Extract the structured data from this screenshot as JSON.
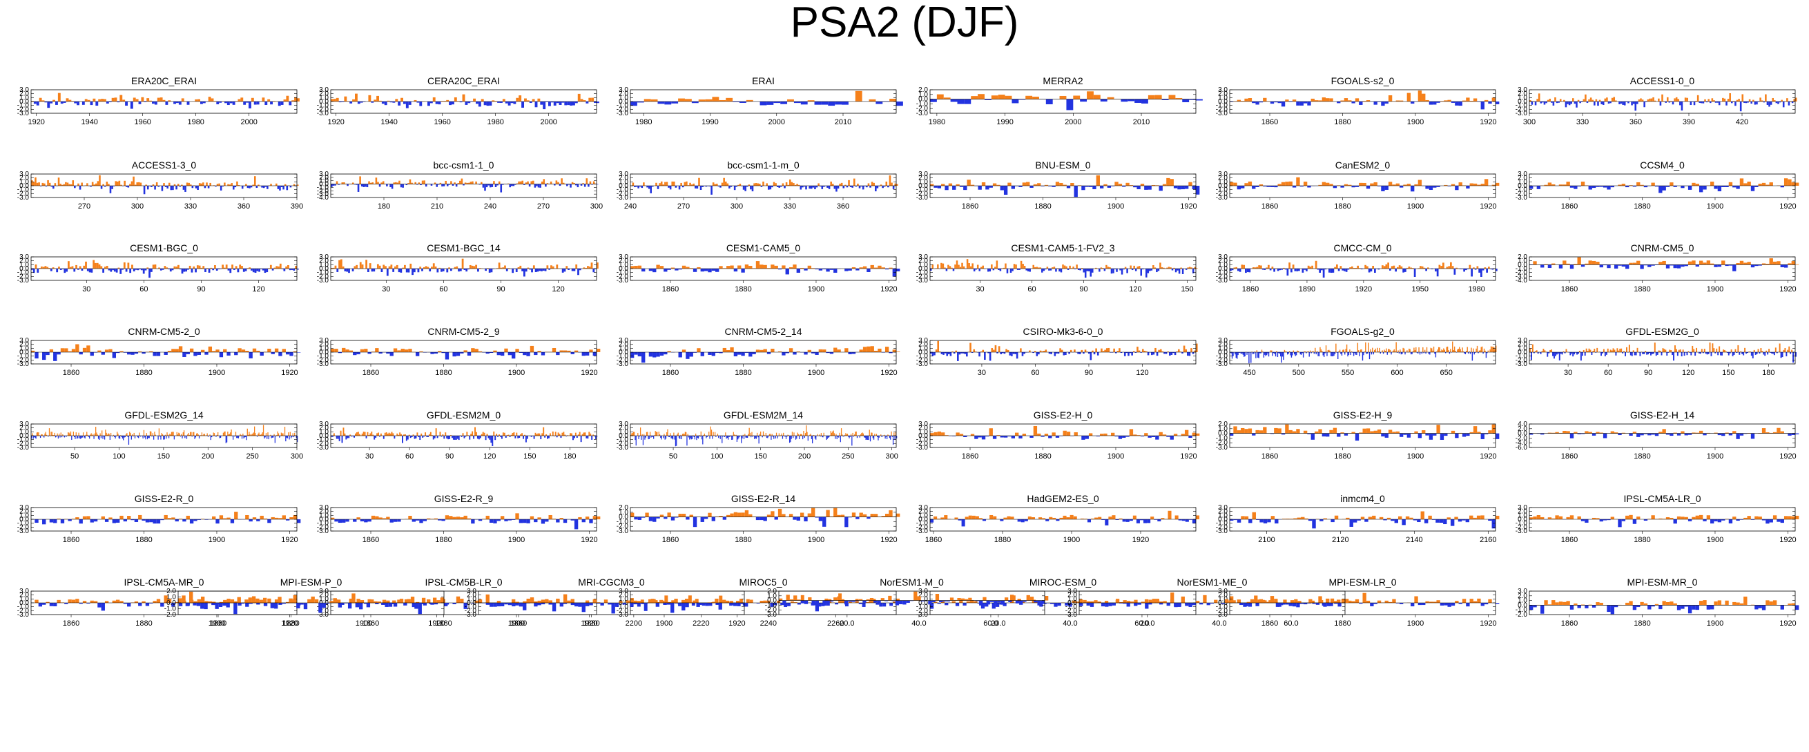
{
  "title": "PSA2 (DJF)",
  "colors": {
    "positive": "#f5801a",
    "negative": "#2233e0",
    "axis": "#000000"
  },
  "chart_data": [
    {
      "type": "area",
      "title": "ERA20C_ERAI",
      "xlim": [
        1918,
        2018
      ],
      "xticks": [
        1920,
        1940,
        1960,
        1980,
        2000
      ],
      "ylim": [
        -3,
        3
      ],
      "yticks": [
        3,
        2,
        1,
        0,
        -1,
        -2,
        -3
      ],
      "seed": 1,
      "regime": "mixed"
    },
    {
      "type": "area",
      "title": "CERA20C_ERAI",
      "xlim": [
        1918,
        2018
      ],
      "xticks": [
        1920,
        1940,
        1960,
        1980,
        2000
      ],
      "ylim": [
        -3,
        3
      ],
      "yticks": [
        3,
        2,
        1,
        0,
        -1,
        -2,
        -3
      ],
      "seed": 2,
      "regime": "mixed"
    },
    {
      "type": "area",
      "title": "ERAI",
      "xlim": [
        1978,
        2018
      ],
      "xticks": [
        1980,
        1990,
        2000,
        2010
      ],
      "ylim": [
        -3,
        3
      ],
      "yticks": [
        3,
        2,
        1,
        0,
        -1,
        -2,
        -3
      ],
      "seed": 3,
      "regime": "mixed"
    },
    {
      "type": "area",
      "title": "MERRA2",
      "xlim": [
        1979,
        2018
      ],
      "xticks": [
        1980,
        1990,
        2000,
        2010
      ],
      "ylim": [
        -3,
        2
      ],
      "yticks": [
        2,
        1,
        0,
        -1,
        -2,
        -3
      ],
      "seed": 4,
      "regime": "mixed"
    },
    {
      "type": "area",
      "title": "FGOALS-s2_0",
      "xlim": [
        1849,
        1922
      ],
      "xticks": [
        1860,
        1880,
        1900,
        1920
      ],
      "ylim": [
        -3,
        3
      ],
      "yticks": [
        3,
        2,
        1,
        0,
        -1,
        -2,
        -3
      ],
      "seed": 5,
      "regime": "mixed"
    },
    {
      "type": "area",
      "title": "ACCESS1-0_0",
      "xlim": [
        300,
        450
      ],
      "xticks": [
        300,
        330,
        360,
        390,
        420
      ],
      "ylim": [
        -3,
        3
      ],
      "yticks": [
        3,
        2,
        1,
        0,
        -1,
        -2,
        -3
      ],
      "seed": 6,
      "regime": "mixed"
    },
    {
      "type": "area",
      "title": "ACCESS1-3_0",
      "xlim": [
        240,
        390
      ],
      "xticks": [
        270,
        300,
        330,
        360,
        390
      ],
      "ylim": [
        -3,
        3
      ],
      "yticks": [
        3,
        2,
        1,
        0,
        -1,
        -2,
        -3
      ],
      "seed": 7,
      "regime": "posneg"
    },
    {
      "type": "area",
      "title": "bcc-csm1-1_0",
      "xlim": [
        150,
        300
      ],
      "xticks": [
        180,
        210,
        240,
        270,
        300
      ],
      "ylim": [
        -4,
        3
      ],
      "yticks": [
        3,
        2,
        1,
        0,
        -1,
        -2,
        -3,
        -4
      ],
      "seed": 8,
      "regime": "mixed"
    },
    {
      "type": "area",
      "title": "bcc-csm1-1-m_0",
      "xlim": [
        240,
        390
      ],
      "xticks": [
        240,
        270,
        300,
        330,
        360
      ],
      "ylim": [
        -3,
        3
      ],
      "yticks": [
        3,
        2,
        1,
        0,
        -1,
        -2,
        -3
      ],
      "seed": 9,
      "regime": "mixed"
    },
    {
      "type": "area",
      "title": "BNU-ESM_0",
      "xlim": [
        1849,
        1922
      ],
      "xticks": [
        1860,
        1880,
        1900,
        1920
      ],
      "ylim": [
        -3,
        3
      ],
      "yticks": [
        3,
        2,
        1,
        0,
        -1,
        -2,
        -3
      ],
      "seed": 10,
      "regime": "mixed"
    },
    {
      "type": "area",
      "title": "CanESM2_0",
      "xlim": [
        1849,
        1922
      ],
      "xticks": [
        1860,
        1880,
        1900,
        1920
      ],
      "ylim": [
        -3,
        3
      ],
      "yticks": [
        3,
        2,
        1,
        0,
        -1,
        -2,
        -3
      ],
      "seed": 11,
      "regime": "mixed"
    },
    {
      "type": "area",
      "title": "CCSM4_0",
      "xlim": [
        1849,
        1922
      ],
      "xticks": [
        1860,
        1880,
        1900,
        1920
      ],
      "ylim": [
        -3,
        3
      ],
      "yticks": [
        3,
        2,
        1,
        0,
        -1,
        -2,
        -3
      ],
      "seed": 12,
      "regime": "mixed"
    },
    {
      "type": "area",
      "title": "CESM1-BGC_0",
      "xlim": [
        1,
        140
      ],
      "xticks": [
        30,
        60,
        90,
        120
      ],
      "ylim": [
        -3,
        3
      ],
      "yticks": [
        3,
        2,
        1,
        0,
        -1,
        -2,
        -3
      ],
      "seed": 13,
      "regime": "mixed"
    },
    {
      "type": "area",
      "title": "CESM1-BGC_14",
      "xlim": [
        1,
        140
      ],
      "xticks": [
        30,
        60,
        90,
        120
      ],
      "ylim": [
        -3,
        3
      ],
      "yticks": [
        3,
        2,
        1,
        0,
        -1,
        -2,
        -3
      ],
      "seed": 14,
      "regime": "mixed"
    },
    {
      "type": "area",
      "title": "CESM1-CAM5_0",
      "xlim": [
        1849,
        1922
      ],
      "xticks": [
        1860,
        1880,
        1900,
        1920
      ],
      "ylim": [
        -3,
        3
      ],
      "yticks": [
        3,
        2,
        1,
        0,
        -1,
        -2,
        -3
      ],
      "seed": 15,
      "regime": "mixed"
    },
    {
      "type": "area",
      "title": "CESM1-CAM5-1-FV2_3",
      "xlim": [
        1,
        155
      ],
      "xticks": [
        30,
        60,
        90,
        120,
        150
      ],
      "ylim": [
        -3,
        3
      ],
      "yticks": [
        3,
        2,
        1,
        0,
        -1,
        -2,
        -3
      ],
      "seed": 16,
      "regime": "posneg"
    },
    {
      "type": "area",
      "title": "CMCC-CM_0",
      "xlim": [
        1849,
        1990
      ],
      "xticks": [
        1860,
        1890,
        1920,
        1950,
        1980
      ],
      "ylim": [
        -3,
        3
      ],
      "yticks": [
        3,
        2,
        1,
        0,
        -1,
        -2,
        -3
      ],
      "seed": 17,
      "regime": "mixed"
    },
    {
      "type": "area",
      "title": "CNRM-CM5_0",
      "xlim": [
        1849,
        1922
      ],
      "xticks": [
        1860,
        1880,
        1900,
        1920
      ],
      "ylim": [
        -4,
        2
      ],
      "yticks": [
        2,
        1,
        0,
        -1,
        -2,
        -3,
        -4
      ],
      "seed": 18,
      "regime": "mixed"
    },
    {
      "type": "area",
      "title": "CNRM-CM5-2_0",
      "xlim": [
        1849,
        1922
      ],
      "xticks": [
        1860,
        1880,
        1900,
        1920
      ],
      "ylim": [
        -3,
        3
      ],
      "yticks": [
        3,
        2,
        1,
        0,
        -1,
        -2,
        -3
      ],
      "seed": 19,
      "regime": "mixed"
    },
    {
      "type": "area",
      "title": "CNRM-CM5-2_9",
      "xlim": [
        1849,
        1922
      ],
      "xticks": [
        1860,
        1880,
        1900,
        1920
      ],
      "ylim": [
        -3,
        3
      ],
      "yticks": [
        3,
        2,
        1,
        0,
        -1,
        -2,
        -3
      ],
      "seed": 20,
      "regime": "mixed"
    },
    {
      "type": "area",
      "title": "CNRM-CM5-2_14",
      "xlim": [
        1849,
        1922
      ],
      "xticks": [
        1860,
        1880,
        1900,
        1920
      ],
      "ylim": [
        -3,
        3
      ],
      "yticks": [
        3,
        2,
        1,
        0,
        -1,
        -2,
        -3
      ],
      "seed": 21,
      "regime": "negpos"
    },
    {
      "type": "area",
      "title": "CSIRO-Mk3-6-0_0",
      "xlim": [
        1,
        150
      ],
      "xticks": [
        30,
        60,
        90,
        120
      ],
      "ylim": [
        -3,
        3
      ],
      "yticks": [
        3,
        2,
        1,
        0,
        -1,
        -2,
        -3
      ],
      "seed": 22,
      "regime": "mixed"
    },
    {
      "type": "area",
      "title": "FGOALS-g2_0",
      "xlim": [
        430,
        700
      ],
      "xticks": [
        450,
        500,
        550,
        600,
        650
      ],
      "ylim": [
        -3,
        3
      ],
      "yticks": [
        3,
        2,
        1,
        0,
        -1,
        -2,
        -3
      ],
      "seed": 23,
      "regime": "negpos"
    },
    {
      "type": "area",
      "title": "GFDL-ESM2G_0",
      "xlim": [
        1,
        200
      ],
      "xticks": [
        30,
        60,
        90,
        120,
        150,
        180
      ],
      "ylim": [
        -3,
        3
      ],
      "yticks": [
        3,
        2,
        1,
        0,
        -1,
        -2,
        -3
      ],
      "seed": 24,
      "regime": "mixed"
    },
    {
      "type": "area",
      "title": "GFDL-ESM2G_14",
      "xlim": [
        1,
        300
      ],
      "xticks": [
        50,
        100,
        150,
        200,
        250,
        300
      ],
      "ylim": [
        -3,
        3
      ],
      "yticks": [
        3,
        2,
        1,
        0,
        -1,
        -2,
        -3
      ],
      "seed": 25,
      "regime": "mixed"
    },
    {
      "type": "area",
      "title": "GFDL-ESM2M_0",
      "xlim": [
        1,
        200
      ],
      "xticks": [
        30,
        60,
        90,
        120,
        150,
        180
      ],
      "ylim": [
        -3,
        3
      ],
      "yticks": [
        3,
        2,
        1,
        0,
        -1,
        -2,
        -3
      ],
      "seed": 26,
      "regime": "mixed"
    },
    {
      "type": "area",
      "title": "GFDL-ESM2M_14",
      "xlim": [
        1,
        305
      ],
      "xticks": [
        50,
        100,
        150,
        200,
        250,
        300
      ],
      "ylim": [
        -3,
        3
      ],
      "yticks": [
        3,
        2,
        1,
        0,
        -1,
        -2,
        -3
      ],
      "seed": 27,
      "regime": "mixed"
    },
    {
      "type": "area",
      "title": "GISS-E2-H_0",
      "xlim": [
        1849,
        1922
      ],
      "xticks": [
        1860,
        1880,
        1900,
        1920
      ],
      "ylim": [
        -3,
        3
      ],
      "yticks": [
        3,
        2,
        1,
        0,
        -1,
        -2,
        -3
      ],
      "seed": 28,
      "regime": "mixed"
    },
    {
      "type": "area",
      "title": "GISS-E2-H_9",
      "xlim": [
        1849,
        1922
      ],
      "xticks": [
        1860,
        1880,
        1900,
        1920
      ],
      "ylim": [
        -3,
        2
      ],
      "yticks": [
        2,
        1,
        0,
        -1,
        -2,
        -3
      ],
      "seed": 29,
      "regime": "posneg"
    },
    {
      "type": "area",
      "title": "GISS-E2-H_14",
      "xlim": [
        1849,
        1922
      ],
      "xticks": [
        1860,
        1880,
        1900,
        1920
      ],
      "ylim": [
        -6,
        4
      ],
      "yticks": [
        4,
        2,
        0,
        -2,
        -4,
        -6
      ],
      "seed": 30,
      "regime": "mixed"
    },
    {
      "type": "area",
      "title": "GISS-E2-R_0",
      "xlim": [
        1849,
        1922
      ],
      "xticks": [
        1860,
        1880,
        1900,
        1920
      ],
      "ylim": [
        -3,
        3
      ],
      "yticks": [
        3,
        2,
        1,
        0,
        -1,
        -2,
        -3
      ],
      "seed": 31,
      "regime": "mixed"
    },
    {
      "type": "area",
      "title": "GISS-E2-R_9",
      "xlim": [
        1849,
        1922
      ],
      "xticks": [
        1860,
        1880,
        1900,
        1920
      ],
      "ylim": [
        -3,
        3
      ],
      "yticks": [
        3,
        2,
        1,
        0,
        -1,
        -2,
        -3
      ],
      "seed": 32,
      "regime": "mixed"
    },
    {
      "type": "area",
      "title": "GISS-E2-R_14",
      "xlim": [
        1849,
        1922
      ],
      "xticks": [
        1860,
        1880,
        1900,
        1920
      ],
      "ylim": [
        -3,
        2
      ],
      "yticks": [
        2,
        1,
        0,
        -1,
        -2,
        -3
      ],
      "seed": 33,
      "regime": "mixed"
    },
    {
      "type": "area",
      "title": "HadGEM2-ES_0",
      "xlim": [
        1859,
        1936
      ],
      "xticks": [
        1860,
        1880,
        1900,
        1920
      ],
      "ylim": [
        -3,
        3
      ],
      "yticks": [
        3,
        2,
        1,
        0,
        -1,
        -2,
        -3
      ],
      "seed": 34,
      "regime": "mixed"
    },
    {
      "type": "area",
      "title": "inmcm4_0",
      "xlim": [
        2090,
        2162
      ],
      "xticks": [
        2100,
        2120,
        2140,
        2160
      ],
      "ylim": [
        -3,
        3
      ],
      "yticks": [
        3,
        2,
        1,
        0,
        -1,
        -2,
        -3
      ],
      "seed": 35,
      "regime": "mixed"
    },
    {
      "type": "area",
      "title": "IPSL-CM5A-LR_0",
      "xlim": [
        1849,
        1922
      ],
      "xticks": [
        1860,
        1880,
        1900,
        1920
      ],
      "ylim": [
        -3,
        3
      ],
      "yticks": [
        3,
        2,
        1,
        0,
        -1,
        -2,
        -3
      ],
      "seed": 36,
      "regime": "mixed"
    },
    {
      "type": "area",
      "title": "IPSL-CM5A-MR_0",
      "xlim": [
        1849,
        1922
      ],
      "xticks": [
        1860,
        1880,
        1900,
        1920
      ],
      "ylim": [
        -3,
        3
      ],
      "yticks": [
        3,
        2,
        1,
        0,
        -1,
        -2,
        -3
      ],
      "seed": 37,
      "regime": "mixed"
    },
    {
      "type": "area",
      "title": "IPSL-CM5B-LR_0",
      "xlim": [
        1849,
        1922
      ],
      "xticks": [
        1860,
        1880,
        1900,
        1920
      ],
      "ylim": [
        -3,
        3
      ],
      "yticks": [
        3,
        2,
        1,
        0,
        -1,
        -2,
        -3
      ],
      "seed": 38,
      "regime": "mixed"
    },
    {
      "type": "area",
      "title": "MIROC5_0",
      "xlim": [
        2199,
        2278
      ],
      "xticks": [
        2200,
        2220,
        2240,
        2260
      ],
      "ylim": [
        -3,
        3
      ],
      "yticks": [
        3,
        2,
        1,
        0,
        -1,
        -2,
        -3
      ],
      "seed": 39,
      "regime": "mixed"
    },
    {
      "type": "area",
      "title": "MIROC-ESM_0",
      "xlim": [
        1,
        75
      ],
      "xticks": [
        "20.0",
        "40.0",
        "60.0"
      ],
      "ylim": [
        -3,
        3
      ],
      "yticks": [
        3,
        2,
        1,
        0,
        -1,
        -2,
        -3
      ],
      "seed": 40,
      "regime": "mixed"
    },
    {
      "type": "area",
      "title": "MPI-ESM-LR_0",
      "xlim": [
        1849,
        1922
      ],
      "xticks": [
        1860,
        1880,
        1900,
        1920
      ],
      "ylim": [
        -3,
        3
      ],
      "yticks": [
        3,
        2,
        1,
        0,
        -1,
        -2,
        -3
      ],
      "seed": 41,
      "regime": "mixed"
    },
    {
      "type": "area",
      "title": "MPI-ESM-MR_0",
      "xlim": [
        1849,
        1922
      ],
      "xticks": [
        1860,
        1880,
        1900,
        1920
      ],
      "ylim": [
        -2,
        3
      ],
      "yticks": [
        3,
        2,
        1,
        0,
        -1,
        -2
      ],
      "seed": 42,
      "regime": "mixed"
    },
    {
      "type": "area",
      "title": "MPI-ESM-P_0",
      "xlim": [
        1849,
        1922
      ],
      "xticks": [
        1860,
        1880,
        1900,
        1920
      ],
      "ylim": [
        -2,
        2
      ],
      "yticks": [
        2,
        1,
        0,
        -1,
        -2
      ],
      "seed": 43,
      "regime": "mixed"
    },
    {
      "type": "area",
      "title": "MRI-CGCM3_0",
      "xlim": [
        1849,
        1922
      ],
      "xticks": [
        1860,
        1880,
        1900,
        1920
      ],
      "ylim": [
        -3,
        3
      ],
      "yticks": [
        3,
        2,
        1,
        0,
        -1,
        -2,
        -3
      ],
      "seed": 44,
      "regime": "mixed"
    },
    {
      "type": "area",
      "title": "NorESM1-M_0",
      "xlim": [
        1,
        75
      ],
      "xticks": [
        "20.0",
        "40.0",
        "60.0"
      ],
      "ylim": [
        -3,
        2
      ],
      "yticks": [
        2,
        1,
        0,
        -1,
        -2,
        -3
      ],
      "seed": 45,
      "regime": "mixed"
    },
    {
      "type": "area",
      "title": "NorESM1-ME_0",
      "xlim": [
        1,
        75
      ],
      "xticks": [
        "20.0",
        "40.0",
        "60.0"
      ],
      "ylim": [
        -3,
        3
      ],
      "yticks": [
        3,
        2,
        1,
        0,
        -1,
        -2,
        -3
      ],
      "seed": 46,
      "regime": "mixed"
    }
  ]
}
